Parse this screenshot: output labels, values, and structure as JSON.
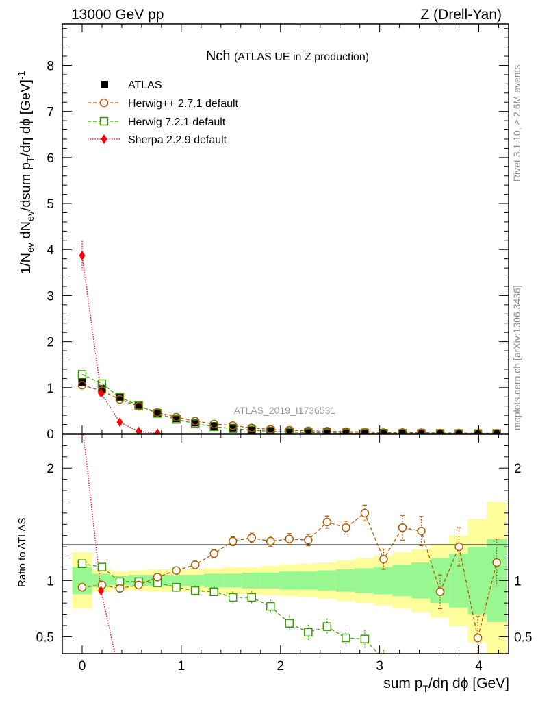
{
  "header": {
    "left": "13000 GeV pp",
    "right": "Z (Drell-Yan)"
  },
  "side_texts": {
    "rivet": "Rivet 3.1.10, ≥ 2.6M events",
    "mcplots": "mcplots.cern.ch [arXiv:1306.3436]"
  },
  "chart_data": {
    "type": "scatter",
    "title_main": "Nch",
    "title_sub": "(ATLAS UE in Z production)",
    "watermark": "ATLAS_2019_I1736531",
    "xlabel": "sum p_T/dη dϕ [GeV]",
    "ylabel": "1/N_ev dN_ev/dsum p_T/dη dϕ [GeV]^-1",
    "ratio_ylabel": "Ratio to ATLAS",
    "xlim": [
      -0.2,
      4.3
    ],
    "ylim": [
      0,
      8.9
    ],
    "ratio_ylim": [
      0.35,
      2.3
    ],
    "x_ticks": [
      "0",
      "1",
      "2",
      "3",
      "4"
    ],
    "y_ticks": [
      "0",
      "1",
      "2",
      "3",
      "4",
      "5",
      "6",
      "7",
      "8"
    ],
    "ratio_ticks": [
      "0.5",
      "1",
      "2"
    ],
    "legend": [
      {
        "label": "ATLAS",
        "color": "#000000",
        "marker": "square-filled"
      },
      {
        "label": "Herwig++ 2.7.1 default",
        "color": "#b05a00",
        "marker": "circle-open"
      },
      {
        "label": "Herwig 7.2.1 default",
        "color": "#3a9a00",
        "marker": "square-open"
      },
      {
        "label": "Sherpa 2.2.9 default",
        "color": "#ff0000",
        "marker": "diamond-filled"
      }
    ],
    "x": [
      0.0,
      0.2,
      0.38,
      0.57,
      0.76,
      0.95,
      1.14,
      1.33,
      1.52,
      1.71,
      1.9,
      2.09,
      2.28,
      2.47,
      2.66,
      2.85,
      3.04,
      3.23,
      3.42,
      3.61,
      3.8,
      3.99,
      4.18
    ],
    "atlas": [
      1.12,
      0.97,
      0.8,
      0.62,
      0.45,
      0.33,
      0.24,
      0.17,
      0.13,
      0.09,
      0.07,
      0.055,
      0.045,
      0.035,
      0.03,
      0.025,
      0.02,
      0.018,
      0.016,
      0.014,
      0.012,
      0.011,
      0.01
    ],
    "sherpa": {
      "x": [
        0.0,
        0.19,
        0.38,
        0.57,
        0.76
      ],
      "y": [
        3.87,
        0.88,
        0.25,
        0.05,
        0.01
      ]
    },
    "ratio_herwigpp": [
      0.94,
      0.96,
      0.93,
      0.96,
      1.03,
      1.09,
      1.14,
      1.24,
      1.35,
      1.38,
      1.35,
      1.37,
      1.36,
      1.52,
      1.47,
      1.6,
      1.19,
      1.47,
      1.44,
      0.9,
      1.3,
      0.49,
      1.16
    ],
    "ratio_herwig7": [
      1.15,
      1.12,
      0.99,
      0.99,
      0.98,
      0.94,
      0.91,
      0.9,
      0.85,
      0.85,
      0.77,
      0.62,
      0.54,
      0.59,
      0.49,
      0.48,
      0.3
    ],
    "ratio_sherpa": {
      "x": [
        0.0,
        0.19,
        0.33
      ],
      "y": [
        2.4,
        0.91,
        0.35
      ]
    },
    "band_inner": [
      0.12,
      0.06,
      0.04,
      0.05,
      0.05,
      0.05,
      0.05,
      0.06,
      0.06,
      0.07,
      0.07,
      0.08,
      0.08,
      0.09,
      0.1,
      0.11,
      0.12,
      0.14,
      0.16,
      0.2,
      0.24,
      0.3,
      0.37
    ],
    "band_outer": [
      0.25,
      0.1,
      0.08,
      0.09,
      0.1,
      0.1,
      0.1,
      0.11,
      0.12,
      0.12,
      0.13,
      0.14,
      0.15,
      0.16,
      0.18,
      0.2,
      0.22,
      0.25,
      0.28,
      0.33,
      0.4,
      0.55,
      0.7
    ]
  }
}
